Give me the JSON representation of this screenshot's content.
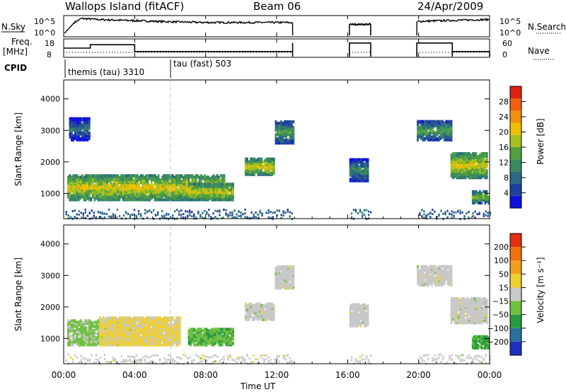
{
  "header": {
    "station": "Wallops Island (fitACF)",
    "beam": "Beam 06",
    "date": "24/Apr/2009"
  },
  "top_panels": {
    "nsky_label": "N.Sky",
    "nsky_ticks": [
      "10^5",
      "10^0"
    ],
    "nsearch_label": "N.Search",
    "nsearch_ticks": [
      "10^5",
      "10^0"
    ],
    "freq_label": "Freq.",
    "freq_unit": "[MHz]",
    "freq_ticks": [
      "18",
      "8"
    ],
    "nave_label": "Nave",
    "nave_ticks": [
      "60",
      "0"
    ],
    "cpid_label": "CPID",
    "cpid_segments": [
      {
        "name": "themis (tau) 3310",
        "start_hour": 0
      },
      {
        "name": "tau (fast) 503",
        "start_hour": 6
      }
    ]
  },
  "x_axis": {
    "label": "Time UT",
    "tick_labels": [
      "00:00",
      "04:00",
      "08:00",
      "12:00",
      "16:00",
      "20:00",
      "00:00"
    ]
  },
  "power_panel": {
    "ylabel": "Slant Range [km]",
    "yticks": [
      "4000",
      "3000",
      "2000",
      "1000"
    ],
    "colorbar_label": "Power [dB]",
    "colorbar_ticks": [
      "28",
      "24",
      "20",
      "16",
      "12",
      "8",
      "4"
    ],
    "colors": [
      "#1010e0",
      "#2040a0",
      "#2a6a80",
      "#3a8a60",
      "#50a040",
      "#a8c020",
      "#f0c000",
      "#f09010",
      "#f06010",
      "#e02010"
    ]
  },
  "velocity_panel": {
    "ylabel": "Slant Range [km]",
    "yticks": [
      "4000",
      "3000",
      "2000",
      "1000"
    ],
    "colorbar_label": "Velocity [m s⁻¹]",
    "colorbar_ticks": [
      "200",
      "100",
      "50",
      "15",
      "−15",
      "−50",
      "−100",
      "−200"
    ],
    "colors": [
      "#2030c0",
      "#2a70a0",
      "#2a9a40",
      "#70c040",
      "#c8c8c8",
      "#f0d030",
      "#f0a020",
      "#f07010",
      "#e03010"
    ]
  },
  "chart_data": [
    {
      "type": "line",
      "title": "N.Sky / N.Search",
      "x": [
        0.0,
        0.6,
        1.0,
        2.0,
        4.0,
        6.0,
        8.0,
        10.0,
        12.5,
        16.0,
        17.0,
        20.0,
        22.0,
        24.0
      ],
      "series": [
        {
          "values": [
            0.3,
            3.5,
            4.6,
            4.3,
            4.0,
            3.7,
            3.5,
            3.5,
            3.5,
            3.0,
            3.0,
            3.8,
            4.1,
            4.3
          ]
        }
      ],
      "gaps": [
        [
          12.9,
          16.1
        ],
        [
          17.3,
          19.9
        ]
      ],
      "ylim": [
        0,
        5
      ],
      "xlim": [
        0,
        24
      ]
    },
    {
      "type": "line",
      "title": "Freq. / Nave",
      "x": [
        0,
        0.9,
        1.5,
        3.6,
        4.0,
        12.1,
        12.9
      ],
      "series": [
        {
          "values": [
            13,
            13,
            15,
            15,
            11,
            11,
            16
          ]
        }
      ],
      "segments_after_gap": [
        {
          "start_hour": 16.1,
          "end_hour": 17.3,
          "value": 16
        },
        {
          "start_hour": 19.9,
          "end_hour": 21.9,
          "value": 16
        },
        {
          "start_hour": 21.9,
          "end_hour": 24.0,
          "value": 11
        }
      ],
      "ylim": [
        8,
        18
      ],
      "xlim": [
        0,
        24
      ]
    },
    {
      "type": "heatmap",
      "title": "Power",
      "x_range_hours": [
        0,
        24
      ],
      "y_range_km": [
        200,
        4600
      ],
      "zlim_dB": [
        0,
        32
      ],
      "regions": [
        {
          "t": [
            0.2,
            9.0
          ],
          "r": [
            800,
            1600
          ],
          "value": 20
        },
        {
          "t": [
            7.0,
            9.5
          ],
          "r": [
            800,
            1300
          ],
          "value": 20
        },
        {
          "t": [
            0.3,
            1.5
          ],
          "r": [
            2700,
            3400
          ],
          "value": 10
        },
        {
          "t": [
            10.2,
            11.8
          ],
          "r": [
            1600,
            2100
          ],
          "value": 20
        },
        {
          "t": [
            11.9,
            12.9
          ],
          "r": [
            2600,
            3300
          ],
          "value": 14
        },
        {
          "t": [
            16.1,
            17.2
          ],
          "r": [
            1400,
            2100
          ],
          "value": 12
        },
        {
          "t": [
            19.9,
            21.9
          ],
          "r": [
            2700,
            3300
          ],
          "value": 14
        },
        {
          "t": [
            21.8,
            23.9
          ],
          "r": [
            1500,
            2300
          ],
          "value": 20
        },
        {
          "t": [
            23.0,
            24.0
          ],
          "r": [
            700,
            1100
          ],
          "value": 16
        }
      ]
    },
    {
      "type": "heatmap",
      "title": "Velocity",
      "x_range_hours": [
        0,
        24
      ],
      "y_range_km": [
        200,
        4600
      ],
      "zlim_mps": [
        -250,
        250
      ],
      "regions": [
        {
          "t": [
            0.2,
            4.0
          ],
          "r": [
            800,
            1600
          ],
          "value": -40
        },
        {
          "t": [
            2.0,
            6.5
          ],
          "r": [
            800,
            1700
          ],
          "value": 40
        },
        {
          "t": [
            7.0,
            9.5
          ],
          "r": [
            800,
            1300
          ],
          "value": -70
        },
        {
          "t": [
            10.2,
            11.8
          ],
          "r": [
            1600,
            2100
          ],
          "value": 0
        },
        {
          "t": [
            11.9,
            12.9
          ],
          "r": [
            2600,
            3300
          ],
          "value": 0
        },
        {
          "t": [
            16.1,
            17.2
          ],
          "r": [
            1400,
            2100
          ],
          "value": 0
        },
        {
          "t": [
            19.9,
            21.9
          ],
          "r": [
            2700,
            3300
          ],
          "value": 0
        },
        {
          "t": [
            21.8,
            23.9
          ],
          "r": [
            1500,
            2300
          ],
          "value": 0
        },
        {
          "t": [
            23.0,
            24.0
          ],
          "r": [
            700,
            1100
          ],
          "value": -90
        }
      ]
    }
  ]
}
